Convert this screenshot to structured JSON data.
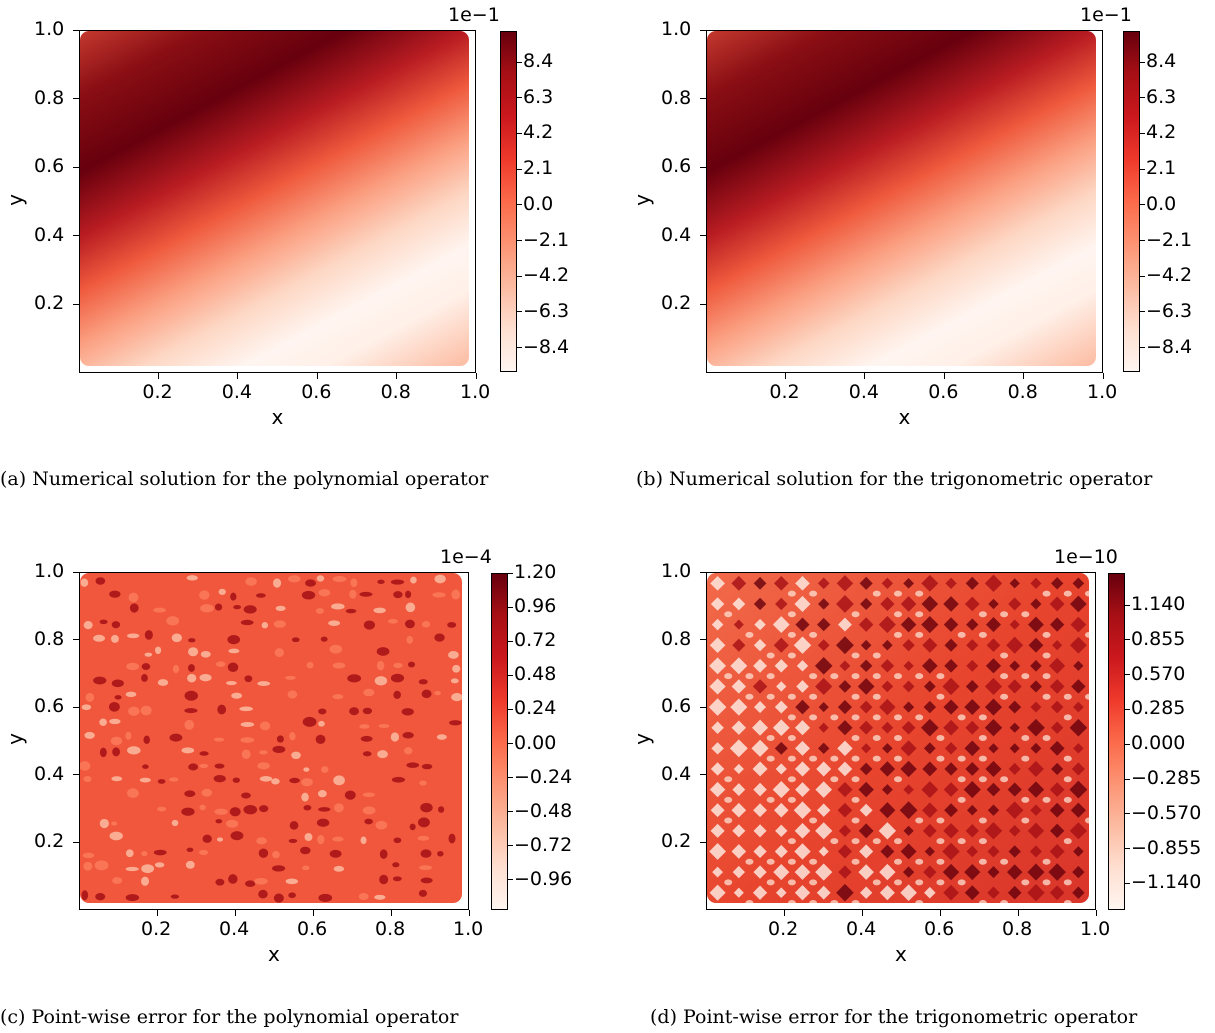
{
  "chart_data": [
    {
      "type": "heatmap",
      "caption": "(a) Numerical solution for the polynomial operator",
      "xlabel": "x",
      "ylabel": "y",
      "xlim": [
        0.0,
        1.0
      ],
      "ylim": [
        0.0,
        1.0
      ],
      "x_ticks": [
        "0.2",
        "0.4",
        "0.6",
        "0.8",
        "1.0"
      ],
      "y_ticks": [
        "0.2",
        "0.4",
        "0.6",
        "0.8",
        "1.0"
      ],
      "colormap": "Reds",
      "colorbar_exponent": "1e−1",
      "colorbar_ticks": [
        "8.4",
        "6.3",
        "4.2",
        "2.1",
        "0.0",
        "−2.1",
        "−4.2",
        "−6.3",
        "−8.4"
      ],
      "value_range": [
        -1.0,
        1.0
      ],
      "pattern": "smooth-diagonal"
    },
    {
      "type": "heatmap",
      "caption": "(b) Numerical solution for the trigonometric operator",
      "xlabel": "x",
      "ylabel": "y",
      "xlim": [
        0.0,
        1.0
      ],
      "ylim": [
        0.0,
        1.0
      ],
      "x_ticks": [
        "0.2",
        "0.4",
        "0.6",
        "0.8",
        "1.0"
      ],
      "y_ticks": [
        "0.2",
        "0.4",
        "0.6",
        "0.8",
        "1.0"
      ],
      "colormap": "Reds",
      "colorbar_exponent": "1e−1",
      "colorbar_ticks": [
        "8.4",
        "6.3",
        "4.2",
        "2.1",
        "0.0",
        "−2.1",
        "−4.2",
        "−6.3",
        "−8.4"
      ],
      "value_range": [
        -1.0,
        1.0
      ],
      "pattern": "smooth-diagonal"
    },
    {
      "type": "heatmap",
      "caption": "(c) Point-wise error for the polynomial operator",
      "xlabel": "x",
      "ylabel": "y",
      "xlim": [
        0.0,
        1.0
      ],
      "ylim": [
        0.0,
        1.0
      ],
      "x_ticks": [
        "0.2",
        "0.4",
        "0.6",
        "0.8",
        "1.0"
      ],
      "y_ticks": [
        "0.2",
        "0.4",
        "0.6",
        "0.8",
        "1.0"
      ],
      "colormap": "Reds",
      "colorbar_exponent": "1e−4",
      "colorbar_ticks": [
        "1.20",
        "0.96",
        "0.72",
        "0.48",
        "0.24",
        "0.00",
        "−0.24",
        "−0.48",
        "−0.72",
        "−0.96"
      ],
      "value_range": [
        -1.2,
        1.2
      ],
      "pattern": "speckled-noise"
    },
    {
      "type": "heatmap",
      "caption": "(d) Point-wise error for the trigonometric operator",
      "xlabel": "x",
      "ylabel": "y",
      "xlim": [
        0.0,
        1.0
      ],
      "ylim": [
        0.0,
        1.0
      ],
      "x_ticks": [
        "0.2",
        "0.4",
        "0.6",
        "0.8",
        "1.0"
      ],
      "y_ticks": [
        "0.2",
        "0.4",
        "0.6",
        "0.8",
        "1.0"
      ],
      "colormap": "Reds",
      "colorbar_exponent": "1e−10",
      "colorbar_ticks": [
        "1.140",
        "0.855",
        "0.570",
        "0.285",
        "0.000",
        "−0.285",
        "−0.570",
        "−0.855",
        "−1.140"
      ],
      "value_range": [
        -1.425,
        1.425
      ],
      "pattern": "grid-noise"
    }
  ]
}
